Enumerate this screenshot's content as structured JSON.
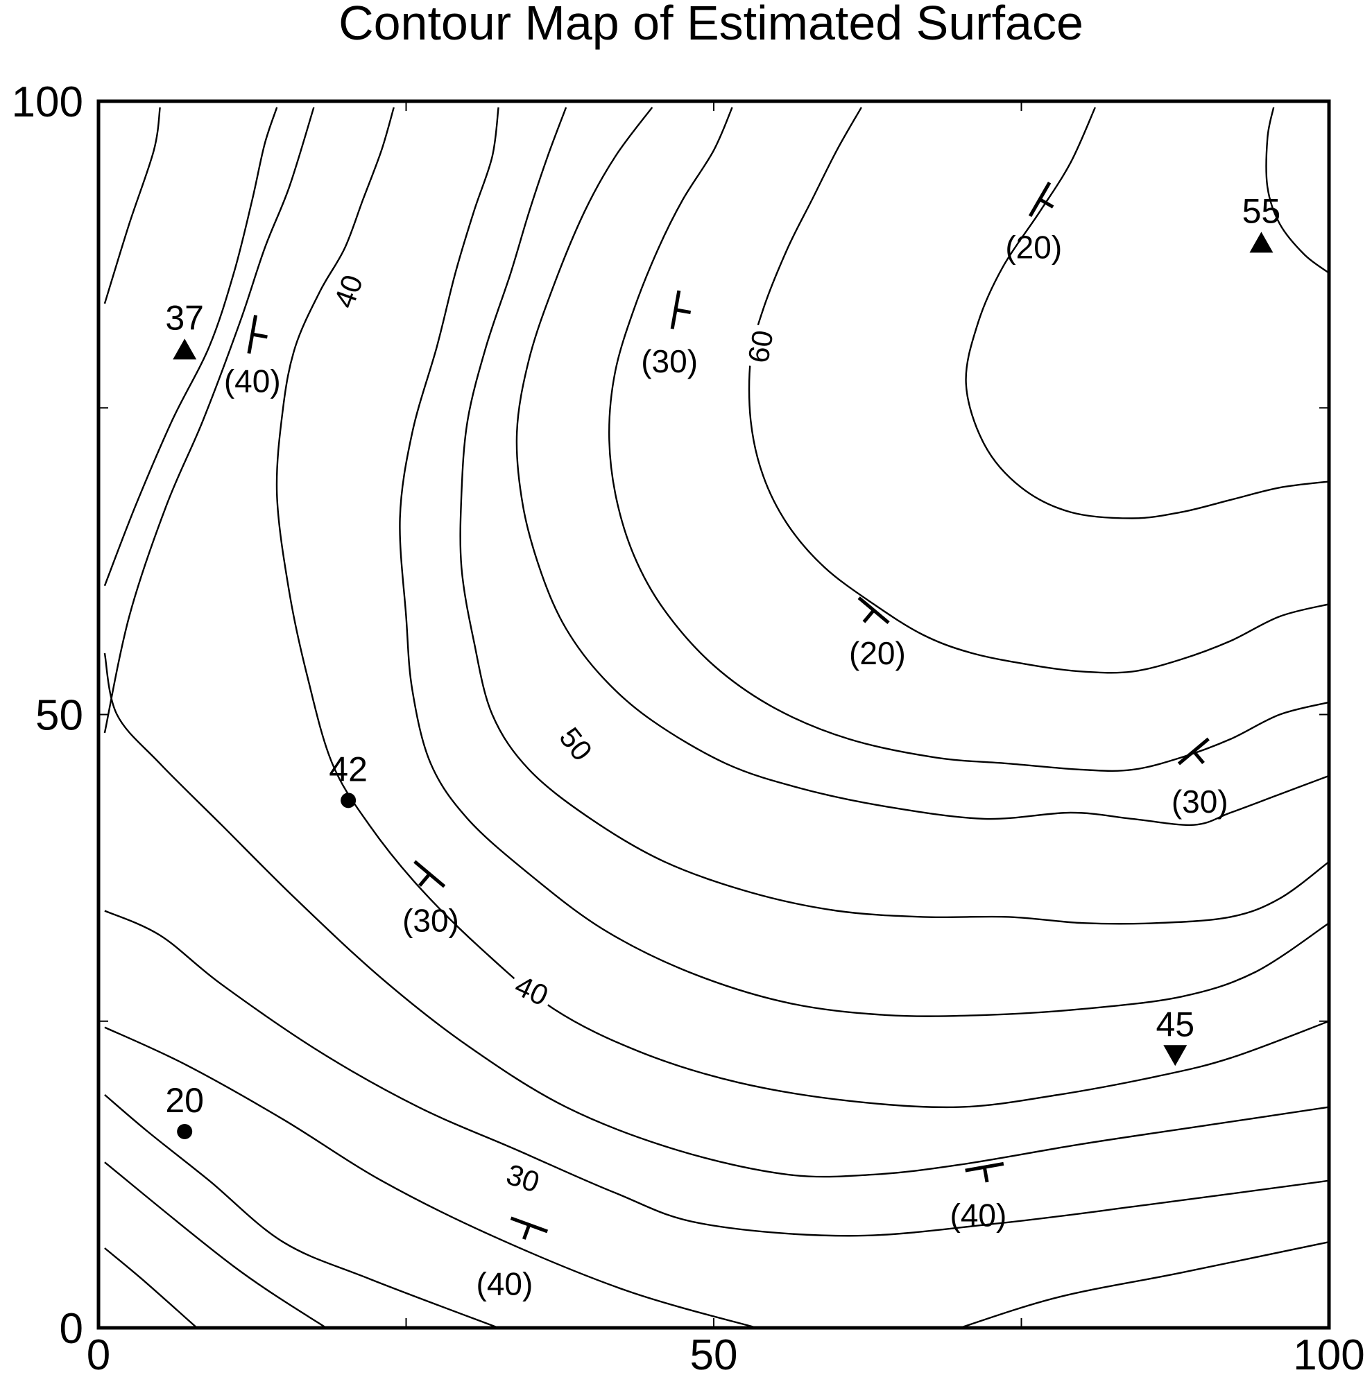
{
  "chart_data": {
    "type": "contour",
    "title": "Contour Map of Estimated Surface",
    "xlabel": "",
    "ylabel": "",
    "xlim": [
      0,
      100
    ],
    "ylim": [
      0,
      100
    ],
    "x_ticks": [
      0,
      50,
      100
    ],
    "y_ticks": [
      0,
      50,
      100
    ],
    "minor_ticks": [
      25,
      75
    ],
    "contour_labels": [
      {
        "text": "40",
        "x": 20.3,
        "y": 84.5,
        "angle": -70
      },
      {
        "text": "60",
        "x": 53.8,
        "y": 80.0,
        "angle": -80
      },
      {
        "text": "50",
        "x": 38.8,
        "y": 47.6,
        "angle": 52
      },
      {
        "text": "40",
        "x": 35.2,
        "y": 27.5,
        "angle": 25
      },
      {
        "text": "30",
        "x": 34.5,
        "y": 12.2,
        "angle": 18
      }
    ],
    "contours": [
      {
        "points": [
          [
            0.5,
            83.5
          ],
          [
            2.5,
            90
          ],
          [
            4.5,
            96
          ],
          [
            5,
            99.5
          ]
        ]
      },
      {
        "points": [
          [
            0.5,
            60.5
          ],
          [
            3,
            67
          ],
          [
            6,
            74
          ],
          [
            9,
            80
          ],
          [
            11,
            86
          ],
          [
            12.5,
            92
          ],
          [
            13.5,
            96.5
          ],
          [
            14.5,
            99.5
          ]
        ]
      },
      {
        "points": [
          [
            0.5,
            48.5
          ],
          [
            2.5,
            58
          ],
          [
            5.5,
            67
          ],
          [
            8.5,
            74
          ],
          [
            11.5,
            82
          ],
          [
            13.5,
            88
          ],
          [
            15.5,
            93
          ],
          [
            17.5,
            99.5
          ]
        ]
      },
      {
        "points": [
          [
            8,
            0
          ],
          [
            3.5,
            4
          ],
          [
            0.5,
            6.5
          ]
        ]
      },
      {
        "points": [
          [
            18.5,
            0
          ],
          [
            11,
            5
          ],
          [
            0.5,
            13.5
          ]
        ]
      },
      {
        "points": [
          [
            32.5,
            0
          ],
          [
            22,
            4
          ],
          [
            15,
            7
          ],
          [
            9,
            12
          ],
          [
            4,
            16
          ],
          [
            0.5,
            19
          ]
        ]
      },
      {
        "points": [
          [
            53.5,
            0
          ],
          [
            43,
            3
          ],
          [
            32,
            7.5
          ],
          [
            23,
            12
          ],
          [
            15,
            17
          ],
          [
            7,
            21.5
          ],
          [
            0.5,
            24.5
          ]
        ]
      },
      {
        "points": [
          [
            70,
            0
          ],
          [
            78,
            2.5
          ],
          [
            88,
            4.5
          ],
          [
            100,
            7
          ]
        ]
      },
      {
        "points": [
          [
            100,
            12
          ],
          [
            85,
            10
          ],
          [
            73,
            8.5
          ],
          [
            61,
            7.5
          ],
          [
            49,
            8.5
          ],
          [
            42,
            11
          ],
          [
            34,
            14.5
          ],
          [
            26,
            18
          ],
          [
            18,
            22.5
          ],
          [
            10,
            28
          ],
          [
            5,
            32
          ],
          [
            0.5,
            34
          ]
        ]
      },
      {
        "points": [
          [
            100,
            18
          ],
          [
            90,
            16.5
          ],
          [
            80,
            15
          ],
          [
            70,
            13.3
          ],
          [
            63,
            12.5
          ],
          [
            56,
            12.5
          ],
          [
            47,
            14.5
          ],
          [
            38,
            18
          ],
          [
            30,
            23
          ],
          [
            23,
            28.5
          ],
          [
            16,
            35
          ],
          [
            10,
            41
          ],
          [
            5,
            46
          ],
          [
            1.5,
            50
          ],
          [
            0.5,
            55
          ]
        ]
      },
      {
        "points": [
          [
            100,
            25
          ],
          [
            92,
            22
          ],
          [
            86,
            20.5
          ],
          [
            78,
            19
          ],
          [
            70,
            18
          ],
          [
            61,
            18.5
          ],
          [
            52,
            20
          ],
          [
            44,
            22.5
          ],
          [
            37,
            26
          ],
          [
            31,
            31
          ],
          [
            26,
            36
          ],
          [
            22,
            41
          ],
          [
            19,
            46
          ],
          [
            17,
            53
          ],
          [
            15.5,
            60
          ],
          [
            14.5,
            68
          ],
          [
            15,
            75
          ],
          [
            16,
            80
          ],
          [
            18,
            84.5
          ],
          [
            20,
            88
          ],
          [
            21.5,
            92
          ],
          [
            23,
            96
          ],
          [
            24,
            99.5
          ]
        ]
      },
      {
        "points": [
          [
            100,
            33
          ],
          [
            94,
            29
          ],
          [
            88,
            27
          ],
          [
            80,
            26
          ],
          [
            72,
            25.5
          ],
          [
            64,
            25.5
          ],
          [
            56,
            26.5
          ],
          [
            48,
            29
          ],
          [
            41,
            32.5
          ],
          [
            35,
            37
          ],
          [
            30,
            41.5
          ],
          [
            27,
            46
          ],
          [
            25.5,
            52
          ],
          [
            25,
            58
          ],
          [
            24.5,
            66
          ],
          [
            25.5,
            73
          ],
          [
            27.5,
            80
          ],
          [
            29,
            86
          ],
          [
            30.5,
            91
          ],
          [
            32,
            95.5
          ],
          [
            32.5,
            99.5
          ]
        ]
      },
      {
        "points": [
          [
            100,
            38
          ],
          [
            96,
            35
          ],
          [
            92,
            33.5
          ],
          [
            86,
            33
          ],
          [
            80,
            33
          ],
          [
            74,
            33.5
          ],
          [
            67,
            33.5
          ],
          [
            60,
            34
          ],
          [
            53,
            35.5
          ],
          [
            46,
            38
          ],
          [
            40,
            41.5
          ],
          [
            35,
            45.5
          ],
          [
            32,
            50
          ],
          [
            30.5,
            56
          ],
          [
            29.5,
            62
          ],
          [
            29.5,
            68
          ],
          [
            30,
            74
          ],
          [
            31.5,
            80
          ],
          [
            33.5,
            86
          ],
          [
            35,
            91
          ],
          [
            36.5,
            95.5
          ],
          [
            38,
            99.5
          ]
        ]
      },
      {
        "points": [
          [
            100,
            45
          ],
          [
            96,
            43.5
          ],
          [
            92,
            42
          ],
          [
            89,
            41
          ],
          [
            84,
            41.5
          ],
          [
            79,
            42
          ],
          [
            72,
            41.5
          ],
          [
            64,
            42.5
          ],
          [
            57,
            44
          ],
          [
            51,
            46
          ],
          [
            45,
            49.5
          ],
          [
            41,
            53
          ],
          [
            38,
            57
          ],
          [
            36,
            61.5
          ],
          [
            34.5,
            67
          ],
          [
            34,
            73
          ],
          [
            35,
            79
          ],
          [
            37,
            85
          ],
          [
            39.5,
            91
          ],
          [
            42,
            95.5
          ],
          [
            45,
            99.5
          ]
        ]
      },
      {
        "points": [
          [
            100,
            51
          ],
          [
            96,
            50
          ],
          [
            92,
            48
          ],
          [
            88,
            46.5
          ],
          [
            84,
            45.5
          ],
          [
            80,
            45.5
          ],
          [
            74,
            46
          ],
          [
            68,
            46.5
          ],
          [
            61,
            48
          ],
          [
            55,
            50.5
          ],
          [
            50,
            54
          ],
          [
            46,
            58.5
          ],
          [
            43.5,
            63
          ],
          [
            42,
            68
          ],
          [
            41.5,
            73
          ],
          [
            42,
            78
          ],
          [
            43.5,
            83
          ],
          [
            45.5,
            88
          ],
          [
            47.5,
            92
          ],
          [
            50,
            96
          ],
          [
            51.5,
            99.5
          ]
        ]
      },
      {
        "points": [
          [
            100,
            59
          ],
          [
            96,
            58
          ],
          [
            92,
            56
          ],
          [
            88,
            54.5
          ],
          [
            84,
            53.5
          ],
          [
            80,
            53.5
          ],
          [
            76,
            54
          ],
          [
            71,
            55
          ],
          [
            67,
            56.5
          ],
          [
            63,
            59
          ],
          [
            59,
            62
          ],
          [
            56,
            65.5
          ],
          [
            54,
            69.5
          ],
          [
            53,
            74
          ],
          [
            53,
            79
          ],
          [
            54,
            83
          ],
          [
            56,
            88
          ],
          [
            58,
            92
          ],
          [
            60,
            96
          ],
          [
            62,
            99.5
          ]
        ]
      },
      {
        "points": [
          [
            100,
            69
          ],
          [
            96,
            68.5
          ],
          [
            92,
            67.5
          ],
          [
            88,
            66.5
          ],
          [
            84,
            66
          ],
          [
            79,
            66.5
          ],
          [
            75,
            68.5
          ],
          [
            72,
            72
          ],
          [
            70.5,
            77
          ],
          [
            71.5,
            82
          ],
          [
            73.5,
            86.5
          ],
          [
            76.5,
            91
          ],
          [
            79,
            95
          ],
          [
            81,
            99.5
          ]
        ]
      },
      {
        "points": [
          [
            100,
            86
          ],
          [
            98,
            87.5
          ],
          [
            96,
            90
          ],
          [
            95,
            93
          ],
          [
            95,
            97
          ],
          [
            95.5,
            99.5
          ]
        ]
      }
    ],
    "strike_symbols": [
      {
        "x": 12.5,
        "y": 81.0,
        "angle": -80,
        "label": "(40)",
        "label_x": 12.5,
        "label_y": 77.2
      },
      {
        "x": 46.9,
        "y": 83.0,
        "angle": -80,
        "label": "(30)",
        "label_x": 46.4,
        "label_y": 78.8
      },
      {
        "x": 76.5,
        "y": 92.0,
        "angle": -60,
        "label": "(20)",
        "label_x": 76.0,
        "label_y": 88.1
      },
      {
        "x": 63.0,
        "y": 58.5,
        "angle": 40,
        "label": "(20)",
        "label_x": 63.3,
        "label_y": 55.0
      },
      {
        "x": 26.9,
        "y": 37.0,
        "angle": 40,
        "label": "(30)",
        "label_x": 27.0,
        "label_y": 33.2
      },
      {
        "x": 89.0,
        "y": 47.0,
        "angle": -40,
        "label": "(30)",
        "label_x": 89.5,
        "label_y": 42.9
      },
      {
        "x": 35.0,
        "y": 8.4,
        "angle": 20,
        "label": "(40)",
        "label_x": 33.0,
        "label_y": 3.6
      },
      {
        "x": 72.0,
        "y": 13.1,
        "angle": -10,
        "label": "(40)",
        "label_x": 71.5,
        "label_y": 9.2
      }
    ],
    "samples": [
      {
        "x": 7.0,
        "y": 79.8,
        "value": "37",
        "marker": "triangle-up"
      },
      {
        "x": 94.5,
        "y": 88.5,
        "value": "55",
        "marker": "triangle-up"
      },
      {
        "x": 20.3,
        "y": 43.0,
        "value": "42",
        "marker": "circle"
      },
      {
        "x": 7.0,
        "y": 16.0,
        "value": "20",
        "marker": "circle"
      },
      {
        "x": 87.5,
        "y": 22.2,
        "value": "45",
        "marker": "triangle-down"
      }
    ]
  }
}
